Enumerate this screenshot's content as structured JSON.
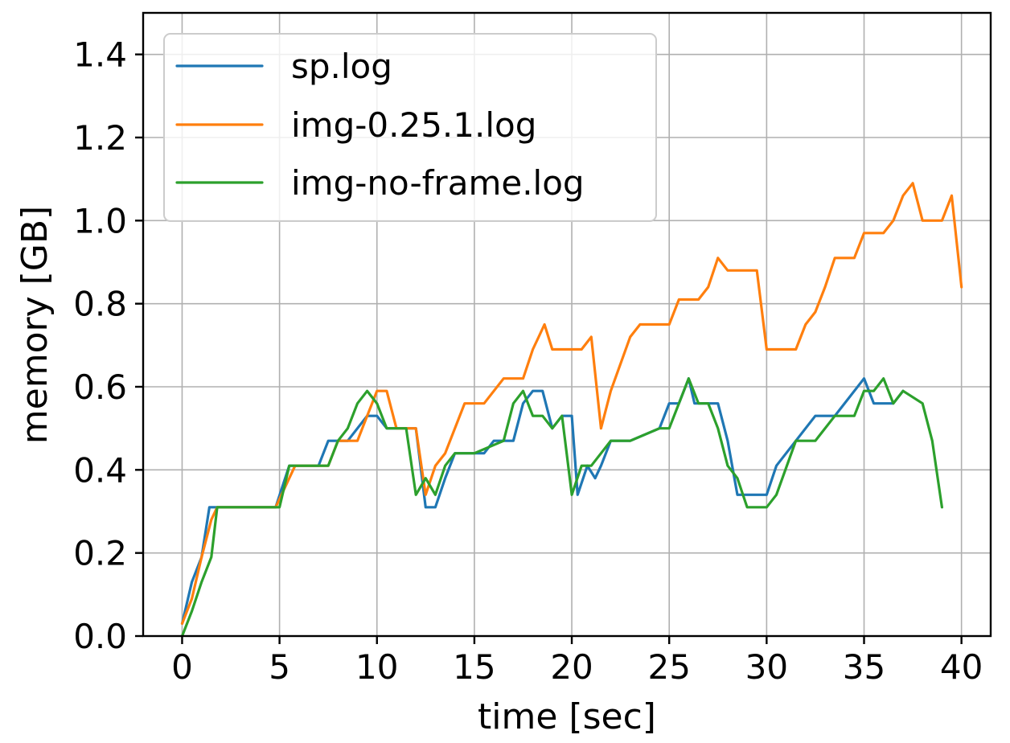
{
  "chart_data": {
    "type": "line",
    "title": "",
    "xlabel": "time [sec]",
    "ylabel": "memory [GB]",
    "xlim": [
      -2,
      41.5
    ],
    "ylim": [
      0,
      1.5
    ],
    "xticks": [
      0,
      5,
      10,
      15,
      20,
      25,
      30,
      35,
      40
    ],
    "yticks": [
      0.0,
      0.2,
      0.4,
      0.6,
      0.8,
      1.0,
      1.2,
      1.4
    ],
    "xtick_labels": [
      "0",
      "5",
      "10",
      "15",
      "20",
      "25",
      "30",
      "35",
      "40"
    ],
    "ytick_labels": [
      "0.0",
      "0.2",
      "0.4",
      "0.6",
      "0.8",
      "1.0",
      "1.2",
      "1.4"
    ],
    "grid": true,
    "legend_position": "top-left",
    "series": [
      {
        "name": "sp.log",
        "color": "#1f77b4",
        "x": [
          0,
          0.5,
          1.0,
          1.4,
          1.8,
          4.8,
          5.5,
          7.0,
          7.5,
          8.5,
          9.0,
          9.5,
          10.0,
          10.5,
          12.0,
          12.5,
          13.0,
          13.5,
          14.0,
          15.5,
          16.0,
          17.0,
          17.5,
          18.0,
          18.5,
          19.0,
          19.5,
          20.0,
          20.3,
          20.8,
          21.2,
          21.5,
          22.0,
          22.5,
          23.0,
          24.5,
          25.0,
          25.5,
          26.0,
          26.3,
          26.7,
          27.5,
          28.0,
          28.5,
          29.0,
          30.0,
          30.5,
          31.5,
          32.5,
          33.5,
          34.5,
          35.0,
          35.5,
          36.5,
          37.0
        ],
        "y": [
          0.03,
          0.13,
          0.19,
          0.31,
          0.31,
          0.31,
          0.41,
          0.41,
          0.47,
          0.47,
          0.5,
          0.53,
          0.53,
          0.5,
          0.5,
          0.31,
          0.31,
          0.38,
          0.44,
          0.44,
          0.47,
          0.47,
          0.56,
          0.59,
          0.59,
          0.5,
          0.53,
          0.53,
          0.34,
          0.41,
          0.38,
          0.41,
          0.47,
          0.47,
          0.47,
          0.5,
          0.56,
          0.56,
          0.62,
          0.56,
          0.56,
          0.56,
          0.47,
          0.34,
          0.34,
          0.34,
          0.41,
          0.47,
          0.53,
          0.53,
          0.59,
          0.62,
          0.56,
          0.56,
          0.59
        ]
      },
      {
        "name": "img-0.25.1.log",
        "color": "#ff7f0e",
        "x": [
          0,
          0.5,
          1.0,
          1.5,
          1.8,
          4.8,
          5.8,
          7.5,
          8.0,
          9.0,
          9.5,
          10.0,
          10.5,
          11.0,
          12.0,
          12.5,
          13.0,
          13.5,
          14.5,
          15.5,
          16.5,
          17.5,
          18.0,
          18.3,
          18.6,
          19.0,
          20.5,
          21.0,
          21.5,
          22.0,
          23.0,
          23.5,
          24.0,
          25.0,
          25.5,
          26.5,
          27.0,
          27.5,
          28.0,
          29.5,
          30.0,
          31.5,
          32.0,
          32.5,
          33.0,
          33.5,
          34.5,
          35.0,
          36.0,
          36.5,
          37.0,
          37.5,
          38.0,
          39.0,
          39.5,
          40.0
        ],
        "y": [
          0.03,
          0.09,
          0.19,
          0.28,
          0.31,
          0.31,
          0.41,
          0.41,
          0.47,
          0.47,
          0.53,
          0.59,
          0.59,
          0.5,
          0.5,
          0.34,
          0.41,
          0.44,
          0.56,
          0.56,
          0.62,
          0.62,
          0.69,
          0.72,
          0.75,
          0.69,
          0.69,
          0.72,
          0.5,
          0.59,
          0.72,
          0.75,
          0.75,
          0.75,
          0.81,
          0.81,
          0.84,
          0.91,
          0.88,
          0.88,
          0.69,
          0.69,
          0.75,
          0.78,
          0.84,
          0.91,
          0.91,
          0.97,
          0.97,
          1.0,
          1.06,
          1.09,
          1.0,
          1.0,
          1.06,
          0.84
        ]
      },
      {
        "name": "img-no-frame.log",
        "color": "#2ca02c",
        "x": [
          0,
          0.5,
          1.0,
          1.5,
          1.8,
          5.0,
          5.5,
          7.5,
          8.0,
          8.5,
          9.0,
          9.5,
          10.0,
          10.5,
          11.5,
          12.0,
          12.5,
          13.0,
          13.5,
          14.0,
          15.0,
          16.5,
          17.0,
          17.5,
          18.0,
          18.5,
          19.0,
          19.5,
          20.0,
          20.5,
          21.0,
          22.0,
          22.5,
          23.0,
          24.5,
          25.0,
          25.5,
          26.0,
          26.5,
          27.0,
          27.5,
          28.0,
          28.5,
          29.0,
          30.0,
          30.5,
          31.5,
          32.5,
          33.5,
          34.5,
          35.0,
          35.5,
          36.0,
          36.5,
          37.0,
          38.0,
          38.5,
          39.0
        ],
        "y": [
          0.0,
          0.06,
          0.13,
          0.19,
          0.31,
          0.31,
          0.41,
          0.41,
          0.47,
          0.5,
          0.56,
          0.59,
          0.56,
          0.5,
          0.5,
          0.34,
          0.38,
          0.34,
          0.41,
          0.44,
          0.44,
          0.47,
          0.56,
          0.59,
          0.53,
          0.53,
          0.5,
          0.53,
          0.34,
          0.41,
          0.41,
          0.47,
          0.47,
          0.47,
          0.5,
          0.5,
          0.56,
          0.62,
          0.56,
          0.56,
          0.5,
          0.41,
          0.38,
          0.31,
          0.31,
          0.34,
          0.47,
          0.47,
          0.53,
          0.53,
          0.59,
          0.59,
          0.62,
          0.56,
          0.59,
          0.56,
          0.47,
          0.31
        ]
      }
    ]
  }
}
